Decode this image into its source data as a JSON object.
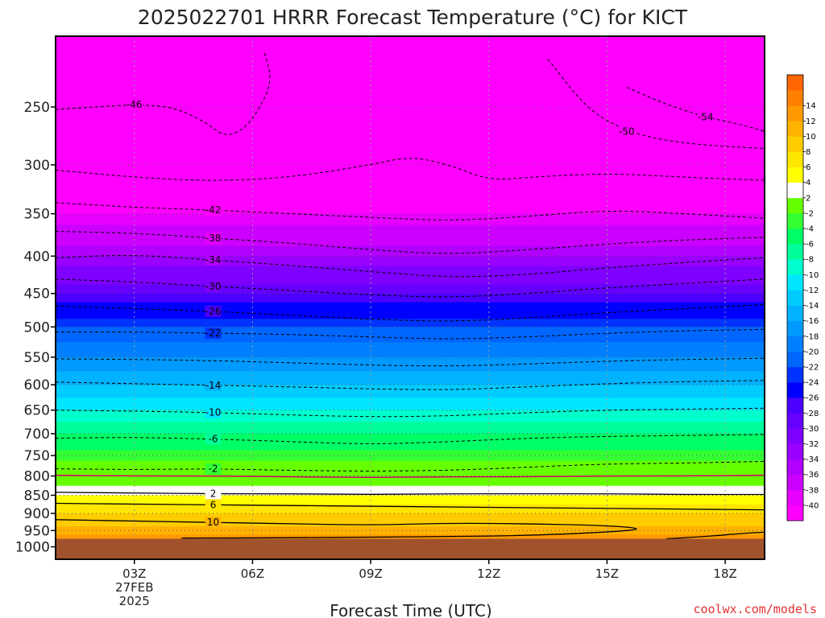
{
  "chart_data": {
    "type": "heatmap",
    "title": "2025022701 HRRR Forecast Temperature (°C) for KICT",
    "xlabel": "Forecast Time (UTC)",
    "ylabel": "",
    "credit": "coolwx.com/models",
    "x_ticks": [
      {
        "label": "03Z",
        "sub": [
          "27FEB",
          "2025"
        ],
        "hour": 3
      },
      {
        "label": "06Z",
        "sub": [],
        "hour": 6
      },
      {
        "label": "09Z",
        "sub": [],
        "hour": 9
      },
      {
        "label": "12Z",
        "sub": [],
        "hour": 12
      },
      {
        "label": "15Z",
        "sub": [],
        "hour": 15
      },
      {
        "label": "18Z",
        "sub": [],
        "hour": 18
      }
    ],
    "xlim_hours": [
      1,
      19
    ],
    "y_ticks": [
      "250",
      "300",
      "350",
      "400",
      "450",
      "500",
      "550",
      "600",
      "650",
      "700",
      "750",
      "800",
      "850",
      "900",
      "950",
      "1000"
    ],
    "ylim_hPa": [
      200,
      1040
    ],
    "y_scale": "log-pressure",
    "surface_pressure_hPa": 975,
    "colorbar_levels": [
      -40,
      -38,
      -36,
      -34,
      -32,
      -30,
      -28,
      -26,
      -24,
      -22,
      -20,
      -18,
      -16,
      -14,
      -12,
      -10,
      -8,
      -6,
      -4,
      -2,
      2,
      4,
      6,
      8,
      10,
      12,
      14
    ],
    "colorbar_colors": [
      "#ff00ff",
      "#e600ff",
      "#cc00ff",
      "#b200ff",
      "#9900ff",
      "#7f00ff",
      "#6600ff",
      "#4c00ff",
      "#0000ff",
      "#0033ff",
      "#0066ff",
      "#0080ff",
      "#0099ff",
      "#00b2ff",
      "#00ccff",
      "#00e6ff",
      "#00ffcc",
      "#00ff99",
      "#00ff66",
      "#33ff33",
      "#66ff00",
      "#ffffff",
      "#ffff00",
      "#ffe600",
      "#ffcc00",
      "#ffb200",
      "#ff9900",
      "#ff8000",
      "#ff6600"
    ],
    "ground_color": "#a0522d",
    "temperature_profile": [
      {
        "p": 200,
        "t": -60
      },
      {
        "p": 250,
        "t": -48
      },
      {
        "p": 300,
        "t": -44
      },
      {
        "p": 350,
        "t": -40
      },
      {
        "p": 400,
        "t": -34
      },
      {
        "p": 450,
        "t": -28
      },
      {
        "p": 500,
        "t": -22
      },
      {
        "p": 550,
        "t": -18
      },
      {
        "p": 600,
        "t": -14
      },
      {
        "p": 650,
        "t": -10
      },
      {
        "p": 700,
        "t": -6
      },
      {
        "p": 750,
        "t": -3
      },
      {
        "p": 800,
        "t": 0
      },
      {
        "p": 850,
        "t": 4
      },
      {
        "p": 900,
        "t": 8
      },
      {
        "p": 950,
        "t": 11
      },
      {
        "p": 975,
        "t": 13
      }
    ],
    "contours": [
      {
        "level": -54,
        "style": "dashed",
        "label": "-54",
        "points": [
          [
            15.5,
            235
          ],
          [
            16.5,
            248
          ],
          [
            17.5,
            258
          ],
          [
            18.5,
            265
          ],
          [
            19,
            270
          ]
        ]
      },
      {
        "level": -50,
        "style": "dashed",
        "label": "-50",
        "points": [
          [
            13.5,
            215
          ],
          [
            14.5,
            252
          ],
          [
            15.5,
            270
          ],
          [
            16.5,
            278
          ],
          [
            17.5,
            282
          ],
          [
            19,
            285
          ]
        ]
      },
      {
        "level": -46,
        "style": "dashed",
        "label": "-46",
        "points": [
          [
            1,
            252
          ],
          [
            2,
            250
          ],
          [
            3,
            248
          ],
          [
            4,
            250
          ],
          [
            4.8,
            262
          ],
          [
            5.3,
            275
          ],
          [
            5.8,
            268
          ],
          [
            6.2,
            250
          ],
          [
            6.5,
            230
          ],
          [
            6.3,
            210
          ]
        ]
      },
      {
        "level": -44,
        "style": "dashed",
        "label": "",
        "points": [
          [
            1,
            305
          ],
          [
            3,
            312
          ],
          [
            5,
            316
          ],
          [
            7,
            312
          ],
          [
            9,
            300
          ],
          [
            10,
            292
          ],
          [
            11,
            300
          ],
          [
            12,
            315
          ],
          [
            13,
            312
          ],
          [
            15,
            308
          ],
          [
            17,
            312
          ],
          [
            19,
            315
          ]
        ]
      },
      {
        "level": -42,
        "style": "dashed",
        "label": "-42",
        "points": [
          [
            1,
            338
          ],
          [
            3,
            343
          ],
          [
            5,
            346
          ],
          [
            7,
            350
          ],
          [
            9,
            354
          ],
          [
            11,
            358
          ],
          [
            13,
            353
          ],
          [
            15,
            346
          ],
          [
            17,
            350
          ],
          [
            19,
            355
          ]
        ]
      },
      {
        "level": -38,
        "style": "dashed",
        "label": "-38",
        "points": [
          [
            1,
            370
          ],
          [
            3,
            372
          ],
          [
            5,
            378
          ],
          [
            7,
            384
          ],
          [
            9,
            392
          ],
          [
            11,
            398
          ],
          [
            13,
            392
          ],
          [
            15,
            385
          ],
          [
            17,
            380
          ],
          [
            19,
            377
          ]
        ]
      },
      {
        "level": -34,
        "style": "dashed",
        "label": "-34",
        "points": [
          [
            1,
            402
          ],
          [
            3,
            398
          ],
          [
            5,
            405
          ],
          [
            7,
            412
          ],
          [
            9,
            420
          ],
          [
            11,
            428
          ],
          [
            13,
            424
          ],
          [
            15,
            415
          ],
          [
            17,
            408
          ],
          [
            19,
            402
          ]
        ]
      },
      {
        "level": -30,
        "style": "dashed",
        "label": "-30",
        "points": [
          [
            1,
            430
          ],
          [
            3,
            434
          ],
          [
            5,
            440
          ],
          [
            7,
            446
          ],
          [
            9,
            452
          ],
          [
            11,
            456
          ],
          [
            13,
            450
          ],
          [
            15,
            442
          ],
          [
            17,
            436
          ],
          [
            19,
            430
          ]
        ]
      },
      {
        "level": -26,
        "style": "dashed",
        "label": "-26",
        "points": [
          [
            1,
            468
          ],
          [
            3,
            472
          ],
          [
            5,
            476
          ],
          [
            7,
            482
          ],
          [
            9,
            488
          ],
          [
            11,
            492
          ],
          [
            13,
            486
          ],
          [
            15,
            478
          ],
          [
            17,
            472
          ],
          [
            19,
            466
          ]
        ]
      },
      {
        "level": -22,
        "style": "dashed",
        "label": "-22",
        "points": [
          [
            1,
            508
          ],
          [
            3,
            508
          ],
          [
            5,
            510
          ],
          [
            7,
            512
          ],
          [
            9,
            516
          ],
          [
            11,
            520
          ],
          [
            13,
            516
          ],
          [
            15,
            510
          ],
          [
            17,
            506
          ],
          [
            19,
            504
          ]
        ]
      },
      {
        "level": -18,
        "style": "dashed",
        "label": "",
        "points": [
          [
            1,
            553
          ],
          [
            3,
            554
          ],
          [
            5,
            556
          ],
          [
            7,
            560
          ],
          [
            9,
            564
          ],
          [
            11,
            566
          ],
          [
            13,
            562
          ],
          [
            15,
            557
          ],
          [
            17,
            554
          ],
          [
            19,
            552
          ]
        ]
      },
      {
        "level": -14,
        "style": "dashed",
        "label": "-14",
        "points": [
          [
            1,
            595
          ],
          [
            3,
            598
          ],
          [
            5,
            601
          ],
          [
            7,
            604
          ],
          [
            9,
            608
          ],
          [
            11,
            610
          ],
          [
            13,
            604
          ],
          [
            15,
            598
          ],
          [
            17,
            594
          ],
          [
            19,
            592
          ]
        ]
      },
      {
        "level": -10,
        "style": "dashed",
        "label": "-10",
        "points": [
          [
            1,
            650
          ],
          [
            3,
            652
          ],
          [
            5,
            655
          ],
          [
            7,
            660
          ],
          [
            9,
            664
          ],
          [
            11,
            662
          ],
          [
            13,
            655
          ],
          [
            15,
            650
          ],
          [
            17,
            648
          ],
          [
            19,
            646
          ]
        ]
      },
      {
        "level": -6,
        "style": "dashed",
        "label": "-6",
        "points": [
          [
            1,
            710
          ],
          [
            3,
            708
          ],
          [
            5,
            712
          ],
          [
            7,
            718
          ],
          [
            9,
            724
          ],
          [
            11,
            718
          ],
          [
            13,
            710
          ],
          [
            15,
            706
          ],
          [
            17,
            704
          ],
          [
            19,
            702
          ]
        ]
      },
      {
        "level": -2,
        "style": "dashed",
        "label": "-2",
        "points": [
          [
            1,
            782
          ],
          [
            3,
            784
          ],
          [
            5,
            782
          ],
          [
            7,
            786
          ],
          [
            9,
            788
          ],
          [
            11,
            786
          ],
          [
            13,
            778
          ],
          [
            15,
            770
          ],
          [
            17,
            768
          ],
          [
            19,
            764
          ]
        ]
      },
      {
        "level": 0,
        "style": "freezing",
        "label": "",
        "points": [
          [
            1,
            798
          ],
          [
            3,
            800
          ],
          [
            5,
            800
          ],
          [
            7,
            802
          ],
          [
            9,
            804
          ],
          [
            11,
            802
          ],
          [
            13,
            802
          ],
          [
            15,
            800
          ],
          [
            17,
            800
          ],
          [
            19,
            798
          ]
        ]
      },
      {
        "level": 2,
        "style": "solid",
        "label": "2",
        "points": [
          [
            1,
            842
          ],
          [
            3,
            844
          ],
          [
            5,
            846
          ],
          [
            7,
            846
          ],
          [
            9,
            848
          ],
          [
            11,
            846
          ],
          [
            13,
            846
          ],
          [
            15,
            846
          ],
          [
            17,
            848
          ],
          [
            19,
            848
          ]
        ]
      },
      {
        "level": 6,
        "style": "solid",
        "label": "6",
        "points": [
          [
            1,
            872
          ],
          [
            3,
            874
          ],
          [
            5,
            876
          ],
          [
            7,
            878
          ],
          [
            9,
            880
          ],
          [
            11,
            882
          ],
          [
            13,
            884
          ],
          [
            15,
            886
          ],
          [
            17,
            888
          ],
          [
            19,
            890
          ]
        ]
      },
      {
        "level": 10,
        "style": "solid",
        "label": "10",
        "points": [
          [
            1,
            918
          ],
          [
            3,
            922
          ],
          [
            5,
            926
          ],
          [
            7,
            930
          ],
          [
            9,
            934
          ],
          [
            11,
            928
          ],
          [
            13,
            930
          ],
          [
            15,
            935
          ],
          [
            16,
            945
          ],
          [
            15,
            955
          ],
          [
            13,
            965
          ],
          [
            11,
            968
          ],
          [
            9,
            970
          ],
          [
            7,
            972
          ],
          [
            4.2,
            973
          ]
        ]
      },
      {
        "level": 10,
        "style": "solid",
        "label": "",
        "points": [
          [
            16.5,
            975
          ],
          [
            17.5,
            968
          ],
          [
            18.5,
            958
          ],
          [
            19,
            955
          ]
        ]
      }
    ]
  }
}
